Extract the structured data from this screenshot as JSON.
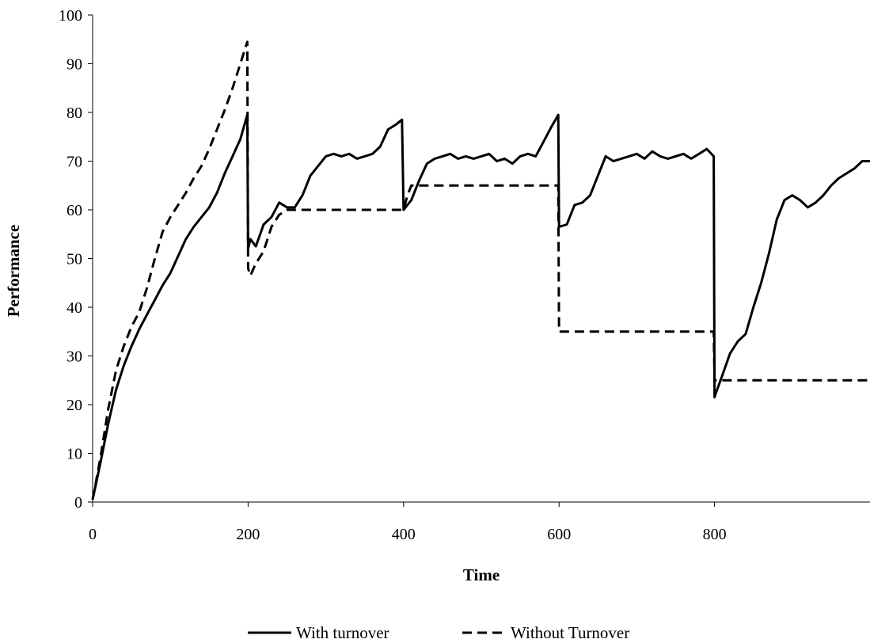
{
  "chart_data": {
    "type": "line",
    "title": "",
    "xlabel": "Time",
    "ylabel": "Performance",
    "xlim": [
      0,
      1000
    ],
    "ylim": [
      0,
      100
    ],
    "x_ticks": [
      0,
      200,
      400,
      600,
      800
    ],
    "y_ticks": [
      0,
      10,
      20,
      30,
      40,
      50,
      60,
      70,
      80,
      90,
      100
    ],
    "grid": false,
    "legend_position": "bottom",
    "series": [
      {
        "name": "With turnover",
        "style": "solid",
        "color": "#000000",
        "x": [
          0,
          10,
          20,
          30,
          40,
          50,
          60,
          70,
          80,
          90,
          100,
          110,
          120,
          130,
          140,
          150,
          160,
          170,
          180,
          190,
          199,
          200,
          203,
          210,
          220,
          230,
          240,
          250,
          260,
          270,
          280,
          290,
          300,
          310,
          320,
          330,
          340,
          350,
          360,
          370,
          380,
          390,
          398,
          400,
          410,
          420,
          430,
          440,
          450,
          460,
          470,
          480,
          490,
          500,
          510,
          520,
          530,
          540,
          550,
          560,
          570,
          580,
          590,
          599,
          600,
          610,
          620,
          630,
          640,
          650,
          660,
          670,
          680,
          690,
          700,
          710,
          720,
          730,
          740,
          750,
          760,
          770,
          780,
          790,
          799,
          800,
          802,
          810,
          820,
          830,
          840,
          850,
          860,
          870,
          880,
          890,
          900,
          910,
          920,
          930,
          940,
          950,
          960,
          970,
          980,
          990,
          1000
        ],
        "y": [
          0.5,
          8,
          16,
          23,
          28,
          32,
          35.5,
          38.5,
          41.5,
          44.5,
          47,
          50.5,
          54,
          56.5,
          58.5,
          60.5,
          63.5,
          67.5,
          71,
          74.5,
          79.5,
          52,
          54,
          52.5,
          57,
          58.5,
          61.5,
          60.5,
          60.5,
          63,
          67,
          69,
          71,
          71.5,
          71,
          71.5,
          70.5,
          71,
          71.5,
          73,
          76.5,
          77.5,
          78.5,
          60,
          62,
          66,
          69.5,
          70.5,
          71,
          71.5,
          70.5,
          71,
          70.5,
          71,
          71.5,
          70,
          70.5,
          69.5,
          71,
          71.5,
          71,
          74,
          77,
          79.5,
          56.5,
          57,
          61,
          61.5,
          63,
          67,
          71,
          70,
          70.5,
          71,
          71.5,
          70.5,
          72,
          71,
          70.5,
          71,
          71.5,
          70.5,
          71.5,
          72.5,
          71,
          21.5,
          22.5,
          26,
          30.5,
          33,
          34.5,
          40,
          45,
          51,
          58,
          62,
          63,
          62,
          60.5,
          61.5,
          63,
          65,
          66.5,
          67.5,
          68.5,
          70,
          70
        ]
      },
      {
        "name": "Without Turnover",
        "style": "dashed",
        "color": "#000000",
        "x": [
          0,
          10,
          20,
          30,
          40,
          50,
          60,
          70,
          80,
          90,
          100,
          110,
          120,
          130,
          140,
          150,
          160,
          170,
          180,
          190,
          199,
          200,
          203,
          210,
          220,
          230,
          240,
          250,
          260,
          300,
          350,
          399,
          400,
          405,
          410,
          420,
          500,
          599,
          600,
          601,
          700,
          799,
          800,
          801,
          900,
          1000
        ],
        "y": [
          0.5,
          9,
          19,
          27,
          32,
          36,
          39,
          44,
          50,
          55.5,
          58.5,
          61,
          63.5,
          66.5,
          69,
          72.5,
          76.5,
          80.5,
          85,
          90,
          94.5,
          48,
          46.5,
          49,
          51.5,
          56.5,
          59,
          60,
          60,
          60,
          60,
          60,
          60,
          63,
          65,
          65,
          65,
          65,
          35,
          35,
          35,
          35,
          25,
          25,
          25,
          25
        ]
      }
    ]
  }
}
